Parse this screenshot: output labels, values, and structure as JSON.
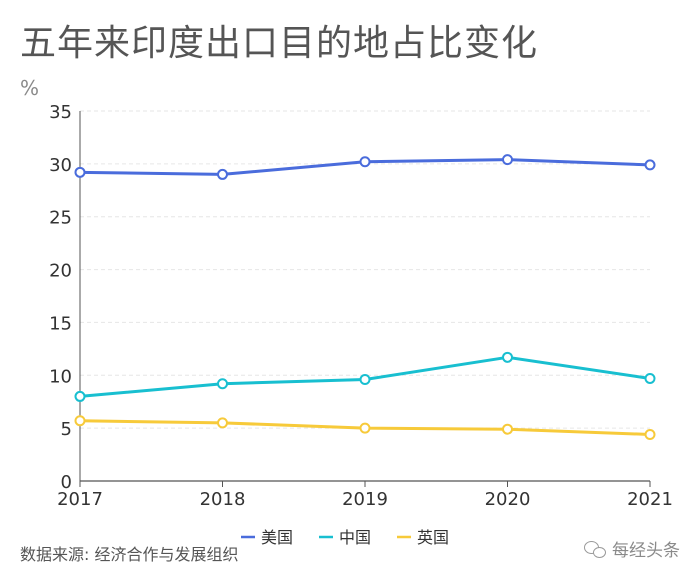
{
  "page": {
    "title": "五年来印度出口目的地占比变化",
    "unit": "%",
    "source": "数据来源: 经济合作与发展组织",
    "watermark": "每经头条"
  },
  "colors": {
    "usa": "#4a6cdc",
    "china": "#18bfd0",
    "uk": "#f7ca3a",
    "grid": "#e6e6e6",
    "axis": "#555555"
  },
  "chart_data": {
    "type": "line",
    "title": "五年来印度出口目的地占比变化",
    "xlabel": "",
    "ylabel": "%",
    "x": [
      "2017",
      "2018",
      "2019",
      "2020",
      "2021"
    ],
    "ylim": [
      0,
      35
    ],
    "yticks": [
      "0",
      "5",
      "10",
      "15",
      "20",
      "25",
      "30",
      "35"
    ],
    "grid": true,
    "legend_position": "bottom-center",
    "series": [
      {
        "name": "美国",
        "color_key": "usa",
        "values": [
          29.2,
          29.0,
          30.2,
          30.4,
          29.9
        ]
      },
      {
        "name": "中国",
        "color_key": "china",
        "values": [
          8.0,
          9.2,
          9.6,
          11.7,
          9.7
        ]
      },
      {
        "name": "英国",
        "color_key": "uk",
        "values": [
          5.7,
          5.5,
          5.0,
          4.9,
          4.4
        ]
      }
    ]
  }
}
